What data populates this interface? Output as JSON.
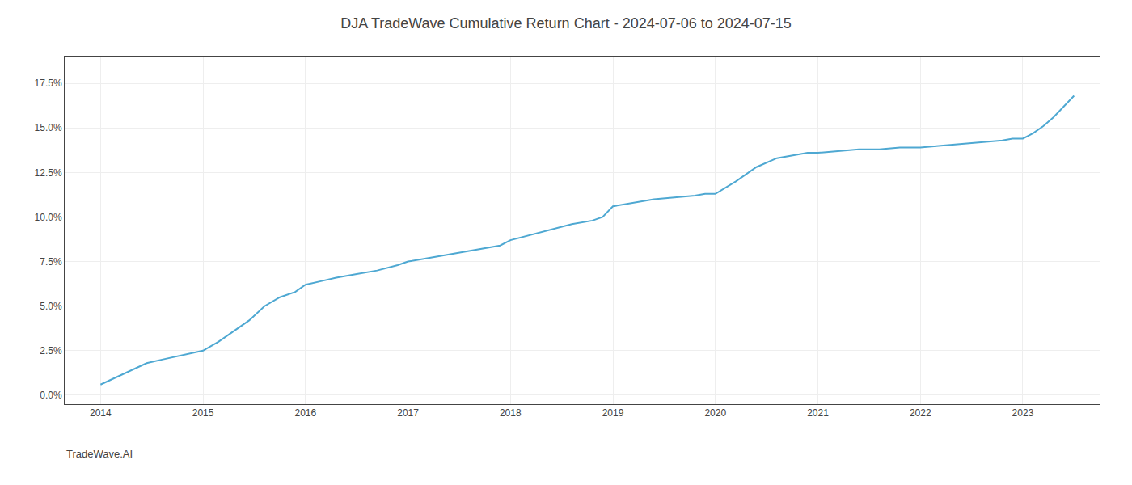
{
  "chart_data": {
    "type": "line",
    "title": "DJA TradeWave Cumulative Return Chart - 2024-07-06 to 2024-07-15",
    "annotations": [
      {
        "text": "TradeWave.AI"
      }
    ],
    "color": "#4ea8d2",
    "grid": true,
    "x": [
      2014.0,
      2014.15,
      2014.3,
      2014.45,
      2014.6,
      2014.75,
      2014.9,
      2015.0,
      2015.15,
      2015.3,
      2015.45,
      2015.6,
      2015.75,
      2015.9,
      2016.0,
      2016.15,
      2016.3,
      2016.5,
      2016.7,
      2016.9,
      2017.0,
      2017.2,
      2017.4,
      2017.6,
      2017.8,
      2017.9,
      2018.0,
      2018.2,
      2018.4,
      2018.6,
      2018.8,
      2018.9,
      2019.0,
      2019.2,
      2019.4,
      2019.6,
      2019.8,
      2019.9,
      2020.0,
      2020.2,
      2020.4,
      2020.6,
      2020.8,
      2020.9,
      2021.0,
      2021.2,
      2021.4,
      2021.6,
      2021.8,
      2021.9,
      2022.0,
      2022.2,
      2022.4,
      2022.6,
      2022.8,
      2022.9,
      2023.0,
      2023.1,
      2023.2,
      2023.3,
      2023.4,
      2023.5
    ],
    "values": [
      0.006,
      0.01,
      0.014,
      0.018,
      0.02,
      0.022,
      0.024,
      0.025,
      0.03,
      0.036,
      0.042,
      0.05,
      0.055,
      0.058,
      0.062,
      0.064,
      0.066,
      0.068,
      0.07,
      0.073,
      0.075,
      0.077,
      0.079,
      0.081,
      0.083,
      0.084,
      0.087,
      0.09,
      0.093,
      0.096,
      0.098,
      0.1,
      0.106,
      0.108,
      0.11,
      0.111,
      0.112,
      0.113,
      0.113,
      0.12,
      0.128,
      0.133,
      0.135,
      0.136,
      0.136,
      0.137,
      0.138,
      0.138,
      0.139,
      0.139,
      0.139,
      0.14,
      0.141,
      0.142,
      0.143,
      0.144,
      0.144,
      0.147,
      0.151,
      0.156,
      0.162,
      0.168
    ],
    "xlim": [
      2013.65,
      2023.75
    ],
    "xticks": [
      2014,
      2015,
      2016,
      2017,
      2018,
      2019,
      2020,
      2021,
      2022,
      2023
    ],
    "ylim": [
      -0.005,
      0.19
    ],
    "yticks": [
      {
        "value": 0.0,
        "label": "0.0%"
      },
      {
        "value": 0.025,
        "label": "2.5%"
      },
      {
        "value": 0.05,
        "label": "5.0%"
      },
      {
        "value": 0.075,
        "label": "7.5%"
      },
      {
        "value": 0.1,
        "label": "10.0%"
      },
      {
        "value": 0.125,
        "label": "12.5%"
      },
      {
        "value": 0.15,
        "label": "15.0%"
      },
      {
        "value": 0.175,
        "label": "17.5%"
      }
    ]
  }
}
